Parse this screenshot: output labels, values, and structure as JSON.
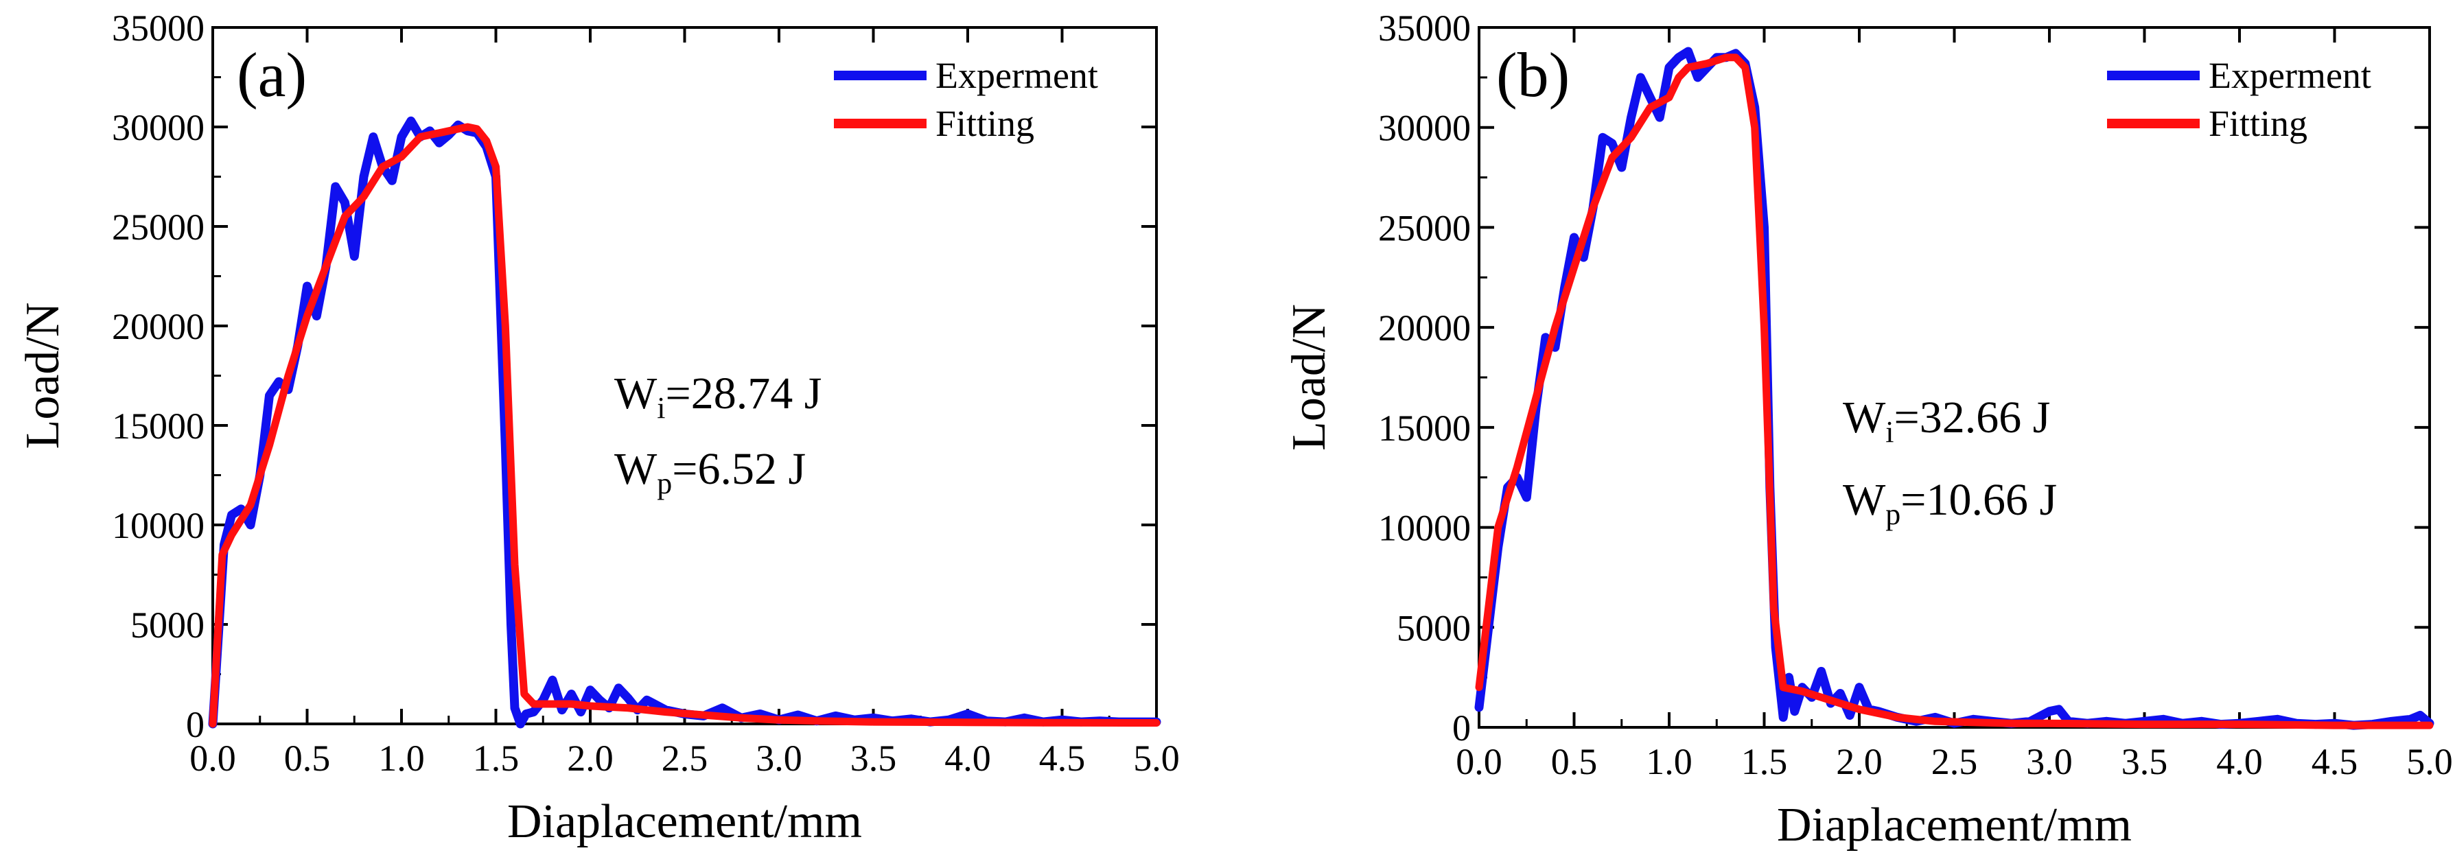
{
  "chart_data": [
    {
      "type": "line",
      "panel_label": "(a)",
      "xlabel": "Diaplacement/mm",
      "ylabel": "Load/N",
      "xlim": [
        0,
        5
      ],
      "ylim": [
        0,
        35000
      ],
      "x_ticks": [
        0,
        0.5,
        1,
        1.5,
        2,
        2.5,
        3,
        3.5,
        4,
        4.5,
        5
      ],
      "x_tick_labels": [
        "0.0",
        "0.5",
        "1.0",
        "1.5",
        "2.0",
        "2.5",
        "3.0",
        "3.5",
        "4.0",
        "4.5",
        "5.0"
      ],
      "y_ticks": [
        0,
        5000,
        10000,
        15000,
        20000,
        25000,
        30000,
        35000
      ],
      "y_tick_labels": [
        "0",
        "5000",
        "10000",
        "15000",
        "20000",
        "25000",
        "30000",
        "35000"
      ],
      "legend_position": "top-right",
      "series": [
        {
          "name": "Experment",
          "color": "#1010ee",
          "x": [
            0,
            0.03,
            0.06,
            0.1,
            0.15,
            0.2,
            0.25,
            0.3,
            0.35,
            0.4,
            0.45,
            0.5,
            0.55,
            0.6,
            0.65,
            0.7,
            0.75,
            0.8,
            0.85,
            0.9,
            0.95,
            1.0,
            1.05,
            1.1,
            1.15,
            1.2,
            1.25,
            1.3,
            1.35,
            1.4,
            1.45,
            1.5,
            1.55,
            1.58,
            1.6,
            1.63,
            1.66,
            1.7,
            1.75,
            1.8,
            1.85,
            1.9,
            1.95,
            2.0,
            2.05,
            2.1,
            2.15,
            2.2,
            2.25,
            2.3,
            2.4,
            2.5,
            2.6,
            2.7,
            2.8,
            2.9,
            3.0,
            3.1,
            3.2,
            3.3,
            3.4,
            3.5,
            3.6,
            3.7,
            3.8,
            3.9,
            4.0,
            4.1,
            4.2,
            4.3,
            4.4,
            4.5,
            4.6,
            4.7,
            4.8,
            4.9,
            5.0
          ],
          "y": [
            0,
            4500,
            9000,
            10500,
            10800,
            10000,
            12500,
            16500,
            17200,
            16800,
            19000,
            22000,
            20500,
            23000,
            27000,
            26200,
            23500,
            27500,
            29500,
            28000,
            27300,
            29500,
            30300,
            29500,
            29800,
            29200,
            29600,
            30100,
            29800,
            29700,
            29000,
            27500,
            14000,
            5000,
            800,
            0,
            500,
            600,
            1200,
            2200,
            700,
            1500,
            600,
            1700,
            1200,
            800,
            1800,
            1300,
            700,
            1200,
            700,
            500,
            400,
            800,
            300,
            500,
            200,
            450,
            150,
            400,
            200,
            300,
            150,
            250,
            100,
            200,
            500,
            150,
            100,
            300,
            100,
            200,
            100,
            150,
            100,
            100,
            100
          ]
        },
        {
          "name": "Fitting",
          "color": "#ff1010",
          "x": [
            0,
            0.05,
            0.1,
            0.2,
            0.3,
            0.4,
            0.5,
            0.6,
            0.7,
            0.8,
            0.9,
            1.0,
            1.1,
            1.2,
            1.3,
            1.35,
            1.4,
            1.45,
            1.5,
            1.55,
            1.6,
            1.65,
            1.7,
            1.8,
            1.9,
            2.0,
            2.2,
            2.4,
            2.6,
            2.8,
            3.0,
            3.2,
            3.5,
            4.0,
            4.5,
            5.0
          ],
          "y": [
            0,
            8500,
            9500,
            11000,
            14000,
            17500,
            20500,
            23000,
            25500,
            26500,
            28000,
            28500,
            29500,
            29700,
            29900,
            30000,
            29900,
            29300,
            28000,
            20000,
            8000,
            1500,
            1000,
            1000,
            1000,
            900,
            800,
            600,
            450,
            300,
            200,
            150,
            100,
            80,
            60,
            50
          ]
        }
      ],
      "annotations": {
        "wi_prefix": "W",
        "wi_sub": "i",
        "wi_value": "=28.74 J",
        "wp_prefix": "W",
        "wp_sub": "p",
        "wp_value": "=6.52 J"
      }
    },
    {
      "type": "line",
      "panel_label": "(b)",
      "xlabel": "Diaplacement/mm",
      "ylabel": "Load/N",
      "xlim": [
        0,
        5
      ],
      "ylim": [
        0,
        35000
      ],
      "x_ticks": [
        0,
        0.5,
        1,
        1.5,
        2,
        2.5,
        3,
        3.5,
        4,
        4.5,
        5
      ],
      "x_tick_labels": [
        "0.0",
        "0.5",
        "1.0",
        "1.5",
        "2.0",
        "2.5",
        "3.0",
        "3.5",
        "4.0",
        "4.5",
        "5.0"
      ],
      "y_ticks": [
        0,
        5000,
        10000,
        15000,
        20000,
        25000,
        30000,
        35000
      ],
      "y_tick_labels": [
        "0",
        "5000",
        "10000",
        "15000",
        "20000",
        "25000",
        "30000",
        "35000"
      ],
      "legend_position": "top-right",
      "series": [
        {
          "name": "Experment",
          "color": "#1010ee",
          "x": [
            0,
            0.05,
            0.1,
            0.15,
            0.2,
            0.25,
            0.3,
            0.35,
            0.4,
            0.45,
            0.5,
            0.55,
            0.6,
            0.65,
            0.7,
            0.75,
            0.8,
            0.85,
            0.9,
            0.95,
            1.0,
            1.05,
            1.1,
            1.15,
            1.2,
            1.25,
            1.3,
            1.35,
            1.4,
            1.45,
            1.5,
            1.53,
            1.56,
            1.6,
            1.63,
            1.66,
            1.7,
            1.75,
            1.8,
            1.85,
            1.9,
            1.95,
            2.0,
            2.05,
            2.1,
            2.2,
            2.3,
            2.4,
            2.5,
            2.6,
            2.7,
            2.8,
            2.9,
            3.0,
            3.05,
            3.1,
            3.2,
            3.3,
            3.4,
            3.5,
            3.6,
            3.7,
            3.8,
            3.9,
            4.0,
            4.1,
            4.2,
            4.3,
            4.4,
            4.5,
            4.6,
            4.7,
            4.8,
            4.9,
            4.95,
            5.0
          ],
          "y": [
            1000,
            5000,
            9000,
            12000,
            12500,
            11500,
            16000,
            19500,
            19000,
            22000,
            24500,
            23500,
            26000,
            29500,
            29200,
            28000,
            30500,
            32500,
            31500,
            30500,
            33000,
            33500,
            33800,
            32500,
            33000,
            33500,
            33500,
            33700,
            33200,
            31000,
            25000,
            12000,
            4000,
            500,
            2500,
            800,
            2000,
            1500,
            2800,
            1200,
            1700,
            600,
            2000,
            900,
            800,
            500,
            300,
            500,
            200,
            400,
            300,
            200,
            300,
            800,
            900,
            300,
            200,
            300,
            200,
            300,
            400,
            200,
            300,
            150,
            200,
            300,
            400,
            200,
            150,
            200,
            100,
            150,
            300,
            400,
            600,
            200
          ]
        },
        {
          "name": "Fitting",
          "color": "#ff1010",
          "x": [
            0,
            0.05,
            0.1,
            0.2,
            0.3,
            0.4,
            0.5,
            0.6,
            0.7,
            0.8,
            0.9,
            1.0,
            1.05,
            1.1,
            1.2,
            1.3,
            1.35,
            1.4,
            1.45,
            1.5,
            1.55,
            1.6,
            1.7,
            1.8,
            1.9,
            2.0,
            2.2,
            2.4,
            2.6,
            2.8,
            3.0,
            3.5,
            4.0,
            4.5,
            5.0
          ],
          "y": [
            2000,
            6000,
            10000,
            13000,
            16500,
            20000,
            23000,
            26000,
            28500,
            29500,
            31000,
            31500,
            32500,
            33000,
            33200,
            33500,
            33500,
            33000,
            30000,
            20000,
            6000,
            2000,
            1800,
            1500,
            1200,
            900,
            500,
            300,
            250,
            200,
            200,
            150,
            150,
            100,
            100
          ]
        }
      ],
      "annotations": {
        "wi_prefix": "W",
        "wi_sub": "i",
        "wi_value": "=32.66 J",
        "wp_prefix": "W",
        "wp_sub": "p",
        "wp_value": "=10.66 J"
      }
    }
  ]
}
